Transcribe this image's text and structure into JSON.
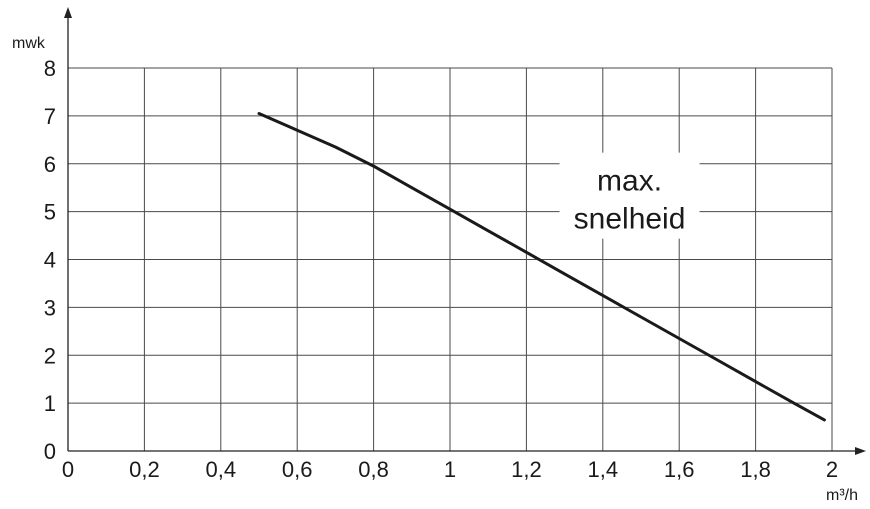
{
  "chart_data": {
    "type": "line",
    "xlabel": "m³/h",
    "ylabel": "mwk",
    "xlim": [
      0,
      2
    ],
    "ylim": [
      0,
      8
    ],
    "x_ticks": [
      "0",
      "0,2",
      "0,4",
      "0,6",
      "0,8",
      "1",
      "1,2",
      "1,4",
      "1,6",
      "1,8",
      "2"
    ],
    "y_ticks": [
      "0",
      "1",
      "2",
      "3",
      "4",
      "5",
      "6",
      "7",
      "8"
    ],
    "grid": true,
    "series": [
      {
        "x": [
          0.5,
          0.6,
          0.7,
          0.8,
          0.9,
          1.0,
          1.1,
          1.2,
          1.3,
          1.4,
          1.5,
          1.6,
          1.7,
          1.8,
          1.9,
          1.98
        ],
        "y": [
          7.05,
          6.7,
          6.35,
          5.95,
          5.5,
          5.05,
          4.6,
          4.15,
          3.7,
          3.25,
          2.8,
          2.35,
          1.9,
          1.45,
          1.0,
          0.65
        ]
      }
    ],
    "annotations": [
      {
        "text": "max. snelheid",
        "lines": [
          "max.",
          "snelheid"
        ],
        "x": 1.47,
        "y": 5.25
      }
    ],
    "colors": {
      "line": "#1a1a1a",
      "grid": "#4a4a4a",
      "background": "#ffffff"
    }
  }
}
